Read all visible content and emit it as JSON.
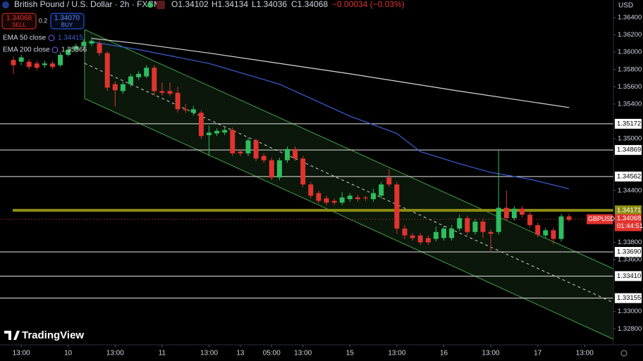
{
  "header": {
    "title": "British Pound / U.S. Dollar · 2h · FXCM",
    "ohlc": [
      "O1.34102",
      "H1.34134",
      "L1.34036",
      "C1.34068",
      "−0.00034 (−0.03%)"
    ],
    "sell_price": "1.34068",
    "sell": "SELL",
    "spread": "0.2",
    "buy_price": "1.34070",
    "buy": "BUY",
    "currency": "USD",
    "brand": "TradingView"
  },
  "chart_data": {
    "type": "candlestick",
    "ylim": [
      1.32615,
      1.36604
    ],
    "grid": false,
    "up_color": "#2ebd5f",
    "down_color": "#e0342f",
    "yticks": [
      {
        "value": 1.364,
        "label": "1.36400"
      },
      {
        "value": 1.362,
        "label": "1.36200"
      },
      {
        "value": 1.36,
        "label": "1.36000"
      },
      {
        "value": 1.358,
        "label": "1.35800"
      },
      {
        "value": 1.356,
        "label": "1.35600"
      },
      {
        "value": 1.354,
        "label": "1.35400"
      },
      {
        "value": 1.35,
        "label": "1.35000"
      },
      {
        "value": 1.344,
        "label": "1.34400"
      },
      {
        "value": 1.338,
        "label": "1.33800"
      },
      {
        "value": 1.336,
        "label": "1.33600"
      },
      {
        "value": 1.33,
        "label": "1.33000"
      },
      {
        "value": 1.328,
        "label": "1.32800"
      }
    ],
    "xticks": [
      {
        "value": 1,
        "label": "13:00"
      },
      {
        "value": 7,
        "label": "10"
      },
      {
        "value": 13,
        "label": "13:00"
      },
      {
        "value": 19,
        "label": "11"
      },
      {
        "value": 25,
        "label": "13:00"
      },
      {
        "value": 29,
        "label": "13"
      },
      {
        "value": 33,
        "label": "05:00"
      },
      {
        "value": 37,
        "label": "13:00"
      },
      {
        "value": 43,
        "label": "15"
      },
      {
        "value": 49,
        "label": "13:00"
      },
      {
        "value": 55,
        "label": "16"
      },
      {
        "value": 61,
        "label": "13:00"
      },
      {
        "value": 67,
        "label": "17"
      },
      {
        "value": 73,
        "label": "13:00"
      }
    ],
    "candles": {
      "open": [
        1.3591,
        1.3589,
        1.3589,
        1.3587,
        1.3585,
        1.3587,
        1.3585,
        1.3597,
        1.3603,
        1.3607,
        1.361,
        1.361,
        1.3599,
        1.3563,
        1.3555,
        1.3563,
        1.3571,
        1.3572,
        1.3582,
        1.3555,
        1.3555,
        1.3553,
        1.3534,
        1.353,
        1.353,
        1.3504,
        1.3506,
        1.3507,
        1.351,
        1.3485,
        1.3483,
        1.3498,
        1.348,
        1.3475,
        1.3455,
        1.3475,
        1.3488,
        1.3477,
        1.3447,
        1.3437,
        1.3431,
        1.3428,
        1.3426,
        1.343,
        1.3432,
        1.3432,
        1.343,
        1.3434,
        1.3455,
        1.3447,
        1.3396,
        1.3388,
        1.3388,
        1.3385,
        1.3384,
        1.3385,
        1.3385,
        1.3396,
        1.3408,
        1.3392,
        1.3404,
        1.3392,
        1.3392,
        1.342,
        1.3408,
        1.3419,
        1.3412,
        1.34,
        1.3388,
        1.3394,
        1.3384,
        1.341
      ],
      "high": [
        1.3595,
        1.3597,
        1.3592,
        1.359,
        1.359,
        1.359,
        1.36,
        1.3606,
        1.361,
        1.3615,
        1.3617,
        1.3613,
        1.3601,
        1.3566,
        1.3566,
        1.3575,
        1.3578,
        1.3585,
        1.3585,
        1.3565,
        1.3565,
        1.356,
        1.354,
        1.3538,
        1.3533,
        1.3515,
        1.3512,
        1.3513,
        1.3513,
        1.3488,
        1.3501,
        1.35,
        1.3483,
        1.3478,
        1.3478,
        1.3491,
        1.3491,
        1.348,
        1.345,
        1.344,
        1.3434,
        1.3431,
        1.3438,
        1.3437,
        1.3435,
        1.3434,
        1.3442,
        1.345,
        1.3465,
        1.345,
        1.34,
        1.3391,
        1.3391,
        1.3388,
        1.3398,
        1.3399,
        1.34,
        1.3412,
        1.3411,
        1.3407,
        1.3407,
        1.3395,
        1.3487,
        1.344,
        1.3422,
        1.3422,
        1.3415,
        1.3403,
        1.3397,
        1.3397,
        1.3413,
        1.3413
      ],
      "low": [
        1.3575,
        1.3585,
        1.358,
        1.3579,
        1.3582,
        1.358,
        1.3583,
        1.3595,
        1.36,
        1.3604,
        1.3607,
        1.3596,
        1.3555,
        1.3537,
        1.3552,
        1.356,
        1.3568,
        1.357,
        1.355,
        1.355,
        1.3549,
        1.353,
        1.353,
        1.3527,
        1.35,
        1.348,
        1.3503,
        1.3504,
        1.348,
        1.348,
        1.348,
        1.3474,
        1.3472,
        1.3452,
        1.3452,
        1.3472,
        1.3474,
        1.3444,
        1.3431,
        1.3425,
        1.3423,
        1.3423,
        1.3423,
        1.3427,
        1.3427,
        1.3428,
        1.3427,
        1.3431,
        1.3444,
        1.339,
        1.3384,
        1.3382,
        1.3377,
        1.3377,
        1.3381,
        1.3382,
        1.3382,
        1.3393,
        1.3389,
        1.3389,
        1.3385,
        1.337,
        1.3389,
        1.3405,
        1.3405,
        1.3409,
        1.3397,
        1.3386,
        1.3385,
        1.3378,
        1.3381,
        1.3404
      ],
      "close": [
        1.3585,
        1.3594,
        1.3583,
        1.3582,
        1.3587,
        1.3583,
        1.3597,
        1.3603,
        1.3607,
        1.3612,
        1.3613,
        1.3599,
        1.3559,
        1.3556,
        1.3563,
        1.3572,
        1.3575,
        1.3582,
        1.3555,
        1.3553,
        1.3552,
        1.3534,
        1.3533,
        1.3534,
        1.3503,
        1.3507,
        1.3509,
        1.351,
        1.3483,
        1.3483,
        1.3498,
        1.3477,
        1.3475,
        1.3455,
        1.3475,
        1.3488,
        1.3477,
        1.3447,
        1.3434,
        1.3428,
        1.3426,
        1.3426,
        1.3432,
        1.3434,
        1.343,
        1.3431,
        1.3437,
        1.3447,
        1.3447,
        1.3396,
        1.3388,
        1.3385,
        1.338,
        1.338,
        1.3392,
        1.3396,
        1.3396,
        1.3408,
        1.3392,
        1.3404,
        1.3392,
        1.339,
        1.342,
        1.3408,
        1.3419,
        1.3412,
        1.34,
        1.3389,
        1.3394,
        1.3384,
        1.341,
        1.3406
      ]
    },
    "series": [
      {
        "name": "EMA 50 close",
        "value_label": "1.34415",
        "color": "#3d5fd6",
        "x": [
          10,
          16,
          25,
          34,
          43,
          49,
          52,
          57,
          61,
          66,
          71
        ],
        "values": [
          1.3612,
          1.3603,
          1.3587,
          1.3563,
          1.3526,
          1.3506,
          1.3485,
          1.3471,
          1.3461,
          1.3453,
          1.3442
        ]
      },
      {
        "name": "EMA 200 close",
        "value_label": "1.35366",
        "color": "#d9d9d9",
        "x": [
          10,
          16,
          25,
          43,
          57,
          71
        ],
        "values": [
          1.3616,
          1.361,
          1.3599,
          1.3575,
          1.3555,
          1.3536
        ]
      }
    ],
    "levels": [
      {
        "value": 1.35172,
        "label": "1.35172",
        "color": "#e6e6e6"
      },
      {
        "value": 1.34869,
        "label": "1.34869",
        "color": "#e6e6e6"
      },
      {
        "value": 1.34562,
        "label": "1.34562",
        "color": "#e6e6e6"
      },
      {
        "value": 1.34171,
        "label": "1.34171",
        "color": "#8c8c14"
      },
      {
        "value": 1.3369,
        "label": "1.33690",
        "color": "#e6e6e6"
      },
      {
        "value": 1.3341,
        "label": "1.33410",
        "color": "#e6e6e6"
      },
      {
        "value": 1.33155,
        "label": "1.33155",
        "color": "#e6e6e6"
      }
    ],
    "last_price": {
      "value": 1.34068,
      "label": "1.34068",
      "symbol": "GBPUSD",
      "countdown": "01:44:51",
      "color": "#e0342f"
    }
  }
}
